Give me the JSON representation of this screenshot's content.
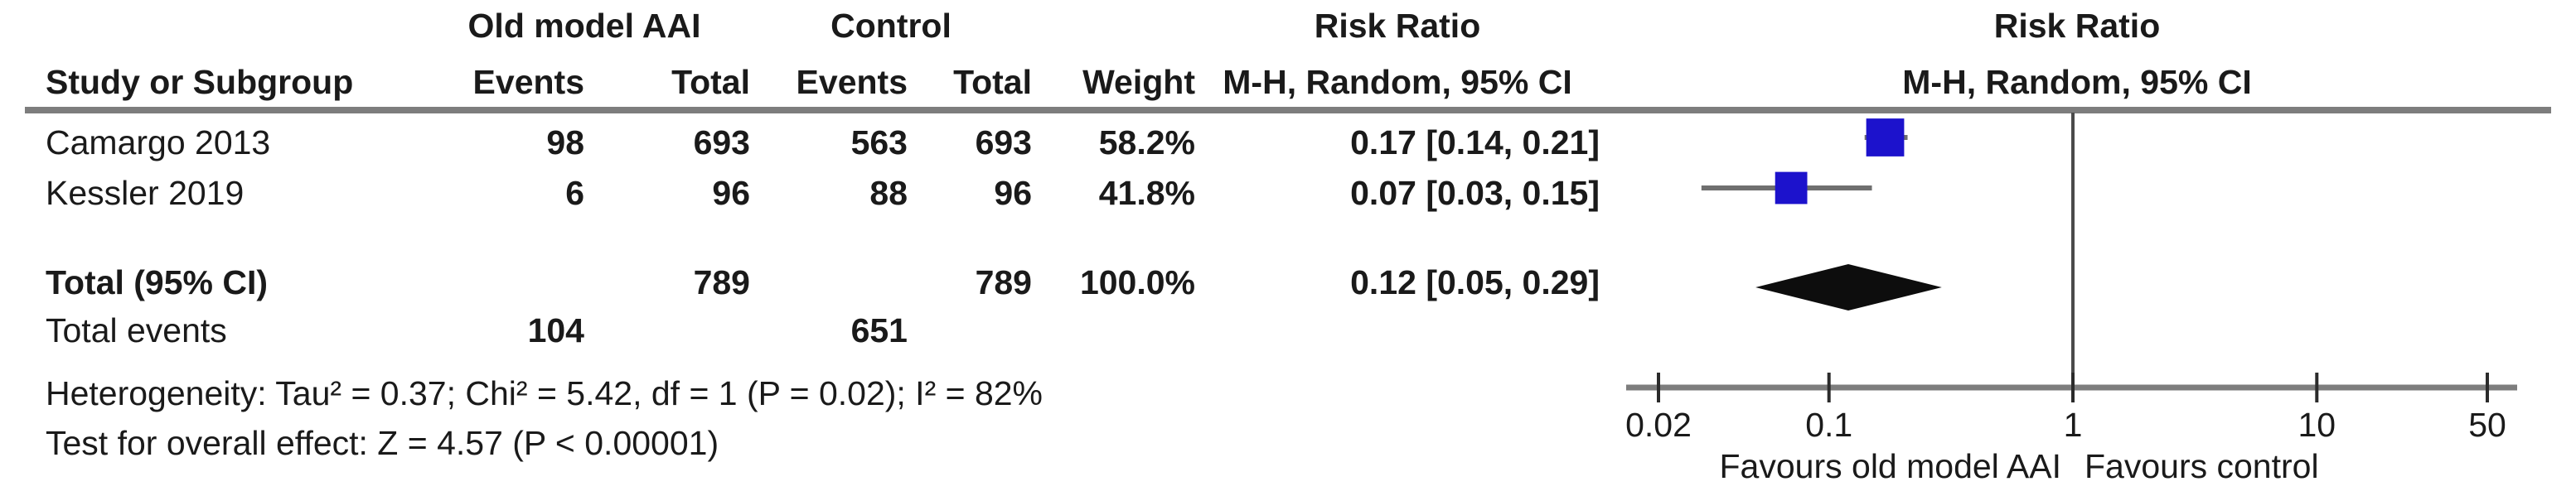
{
  "table": {
    "group_headers": {
      "experimental": "Old model AAI",
      "control": "Control",
      "effect_text_col": "Risk Ratio",
      "effect_plot_col": "Risk Ratio"
    },
    "col_headers": {
      "study": "Study or Subgroup",
      "events_exp": "Events",
      "total_exp": "Total",
      "events_ctrl": "Events",
      "total_ctrl": "Total",
      "weight": "Weight",
      "ci_text_col": "M-H, Random, 95% CI",
      "ci_plot_col": "M-H, Random, 95% CI"
    },
    "rows": [
      {
        "study": "Camargo 2013",
        "events_exp": "98",
        "total_exp": "693",
        "events_ctrl": "563",
        "total_ctrl": "693",
        "weight": "58.2%",
        "rr": "0.17 [0.14, 0.21]"
      },
      {
        "study": "Kessler 2019",
        "events_exp": "6",
        "total_exp": "96",
        "events_ctrl": "88",
        "total_ctrl": "96",
        "weight": "41.8%",
        "rr": "0.07 [0.03, 0.15]"
      }
    ],
    "total_row": {
      "label": "Total (95% CI)",
      "total_exp": "789",
      "total_ctrl": "789",
      "weight": "100.0%",
      "rr": "0.12 [0.05, 0.29]"
    },
    "total_events_row": {
      "label": "Total events",
      "events_exp": "104",
      "events_ctrl": "651"
    },
    "heterogeneity": "Heterogeneity: Tau² = 0.37; Chi² = 5.42, df = 1 (P = 0.02); I² = 82%",
    "overall_effect": "Test for overall effect: Z = 4.57 (P < 0.00001)"
  },
  "chart_data": {
    "type": "forest",
    "effect_measure": "Risk Ratio",
    "method": "M-H, Random, 95% CI",
    "x_scale": "log",
    "xlim": [
      0.02,
      50
    ],
    "axis_ticks": [
      "0.02",
      "0.1",
      "1",
      "10",
      "50"
    ],
    "no_effect_value": 1,
    "studies": [
      {
        "name": "Camargo 2013",
        "events_exp": 98,
        "total_exp": 693,
        "events_ctrl": 563,
        "total_ctrl": 693,
        "weight_pct": 58.2,
        "rr": 0.17,
        "ci_low": 0.14,
        "ci_high": 0.21
      },
      {
        "name": "Kessler 2019",
        "events_exp": 6,
        "total_exp": 96,
        "events_ctrl": 88,
        "total_ctrl": 96,
        "weight_pct": 41.8,
        "rr": 0.07,
        "ci_low": 0.03,
        "ci_high": 0.15
      }
    ],
    "total": {
      "total_exp": 789,
      "total_ctrl": 789,
      "events_exp": 104,
      "events_ctrl": 651,
      "weight_pct": 100.0,
      "rr": 0.12,
      "ci_low": 0.05,
      "ci_high": 0.29
    },
    "heterogeneity": {
      "tau2": 0.37,
      "chi2": 5.42,
      "df": 1,
      "p": 0.02,
      "i2_pct": 82
    },
    "overall_effect": {
      "z": 4.57,
      "p": "< 0.00001"
    },
    "favours_left": "Favours old model AAI",
    "favours_right": "Favours control"
  },
  "colors": {
    "square_blue": "#1c12cc",
    "diamond_black": "#0d0d0d",
    "axis_gray": "#7d7d7d",
    "ci_gray": "#6f6f6f",
    "tick_dark": "#2b2b2b",
    "vline_dark": "#4a4a4a",
    "text": "#1a1a1a"
  }
}
